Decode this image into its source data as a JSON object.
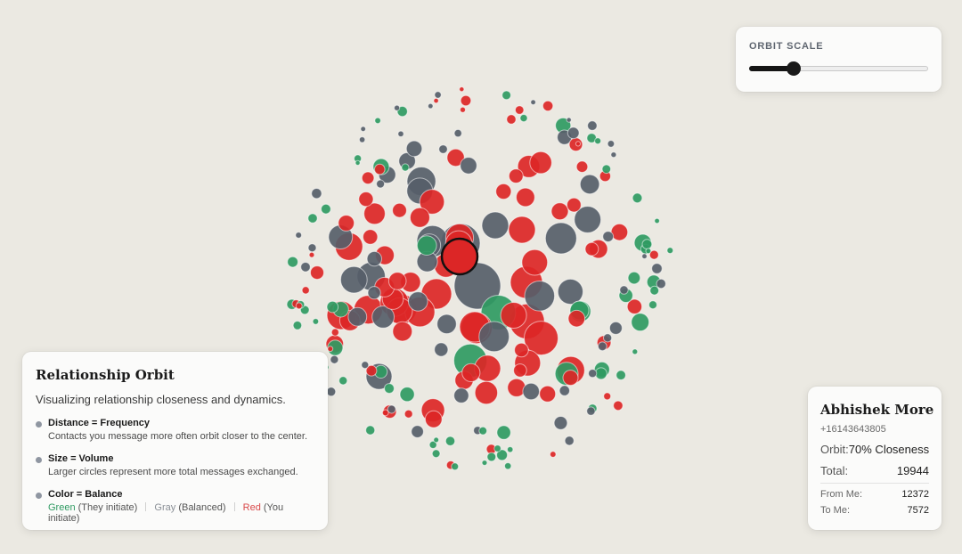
{
  "controls": {
    "orbit_scale_label": "ORBIT SCALE",
    "orbit_scale_value": 0.25
  },
  "legend": {
    "title": "Relationship Orbit",
    "subtitle": "Visualizing relationship closeness and dynamics.",
    "items": [
      {
        "title": "Distance = Frequency",
        "description": "Contacts you message more often orbit closer to the center."
      },
      {
        "title": "Size = Volume",
        "description": "Larger circles represent more total messages exchanged."
      },
      {
        "title": "Color = Balance"
      }
    ],
    "color_keys": {
      "green": "Green",
      "green_note": "(They initiate)",
      "gray": "Gray",
      "gray_note": "(Balanced)",
      "red": "Red",
      "red_note": "(You initiate)"
    }
  },
  "contact": {
    "name": "Abhishek More",
    "phone": "+16143643805",
    "orbit_label": "Orbit:",
    "orbit_value": "70% Closeness",
    "total_label": "Total:",
    "total_value": "19944",
    "from_me_label": "From Me:",
    "from_me_value": "12372",
    "to_me_label": "To Me:",
    "to_me_value": "7572"
  },
  "colors": {
    "background": "#ebe9e2",
    "green": "#2f9a62",
    "gray": "#565e69",
    "red": "#dc2626",
    "selected_outline": "#111111"
  }
}
